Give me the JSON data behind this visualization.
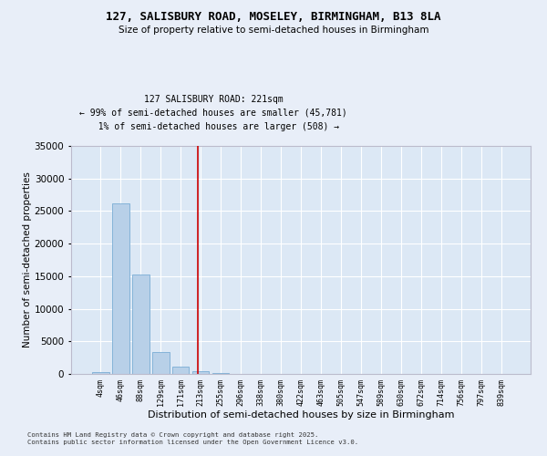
{
  "title": "127, SALISBURY ROAD, MOSELEY, BIRMINGHAM, B13 8LA",
  "subtitle": "Size of property relative to semi-detached houses in Birmingham",
  "xlabel": "Distribution of semi-detached houses by size in Birmingham",
  "ylabel": "Number of semi-detached properties",
  "bar_color": "#b8d0e8",
  "bar_edge_color": "#7aadd4",
  "bg_color": "#dce8f5",
  "grid_color": "#ffffff",
  "annotation_box_color": "#cc0000",
  "vline_color": "#cc0000",
  "categories": [
    "4sqm",
    "46sqm",
    "88sqm",
    "129sqm",
    "171sqm",
    "213sqm",
    "255sqm",
    "296sqm",
    "338sqm",
    "380sqm",
    "422sqm",
    "463sqm",
    "505sqm",
    "547sqm",
    "589sqm",
    "630sqm",
    "672sqm",
    "714sqm",
    "756sqm",
    "797sqm",
    "839sqm"
  ],
  "values": [
    350,
    26200,
    15200,
    3300,
    1100,
    430,
    200,
    60,
    20,
    10,
    5,
    3,
    2,
    1,
    1,
    1,
    0,
    0,
    0,
    0,
    0
  ],
  "property_label": "127 SALISBURY ROAD: 221sqm",
  "pct_smaller": 99,
  "n_smaller": 45781,
  "pct_larger": 1,
  "n_larger": 508,
  "vline_position": 4.85,
  "ylim": [
    0,
    35000
  ],
  "yticks": [
    0,
    5000,
    10000,
    15000,
    20000,
    25000,
    30000,
    35000
  ],
  "fig_facecolor": "#e8eef8",
  "footer_line1": "Contains HM Land Registry data © Crown copyright and database right 2025.",
  "footer_line2": "Contains public sector information licensed under the Open Government Licence v3.0."
}
